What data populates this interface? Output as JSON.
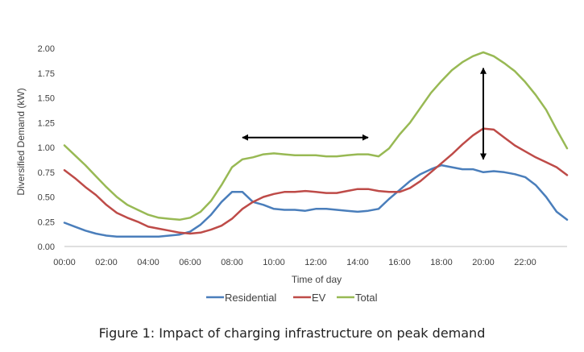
{
  "chart_data": {
    "type": "line",
    "title": "",
    "xlabel": "Time of day",
    "ylabel": "Diversified Demand (kW)",
    "ylim": [
      0,
      2.0
    ],
    "xlim": [
      "00:00",
      "24:00"
    ],
    "x_ticks": [
      "00:00",
      "02:00",
      "04:00",
      "06:00",
      "08:00",
      "10:00",
      "12:00",
      "14:00",
      "16:00",
      "18:00",
      "20:00",
      "22:00"
    ],
    "y_ticks": [
      "0.00",
      "0.25",
      "0.50",
      "0.75",
      "1.00",
      "1.25",
      "1.50",
      "1.75",
      "2.00"
    ],
    "x": [
      "00:00",
      "00:30",
      "01:00",
      "01:30",
      "02:00",
      "02:30",
      "03:00",
      "03:30",
      "04:00",
      "04:30",
      "05:00",
      "05:30",
      "06:00",
      "06:30",
      "07:00",
      "07:30",
      "08:00",
      "08:30",
      "09:00",
      "09:30",
      "10:00",
      "10:30",
      "11:00",
      "11:30",
      "12:00",
      "12:30",
      "13:00",
      "13:30",
      "14:00",
      "14:30",
      "15:00",
      "15:30",
      "16:00",
      "16:30",
      "17:00",
      "17:30",
      "18:00",
      "18:30",
      "19:00",
      "19:30",
      "20:00",
      "20:30",
      "21:00",
      "21:30",
      "22:00",
      "22:30",
      "23:00",
      "23:30",
      "24:00"
    ],
    "series": [
      {
        "name": "Residential",
        "color": "#4a7ebb",
        "values": [
          0.24,
          0.2,
          0.16,
          0.13,
          0.11,
          0.1,
          0.1,
          0.1,
          0.1,
          0.1,
          0.11,
          0.12,
          0.15,
          0.22,
          0.32,
          0.45,
          0.55,
          0.55,
          0.45,
          0.42,
          0.38,
          0.37,
          0.37,
          0.36,
          0.38,
          0.38,
          0.37,
          0.36,
          0.35,
          0.36,
          0.38,
          0.48,
          0.57,
          0.66,
          0.73,
          0.78,
          0.82,
          0.8,
          0.78,
          0.78,
          0.75,
          0.76,
          0.75,
          0.73,
          0.7,
          0.62,
          0.5,
          0.35,
          0.27
        ]
      },
      {
        "name": "EV",
        "color": "#be4b48",
        "values": [
          0.77,
          0.69,
          0.6,
          0.52,
          0.42,
          0.34,
          0.29,
          0.25,
          0.2,
          0.18,
          0.16,
          0.14,
          0.13,
          0.14,
          0.17,
          0.21,
          0.28,
          0.38,
          0.45,
          0.5,
          0.53,
          0.55,
          0.55,
          0.56,
          0.55,
          0.54,
          0.54,
          0.56,
          0.58,
          0.58,
          0.56,
          0.55,
          0.55,
          0.59,
          0.66,
          0.75,
          0.84,
          0.93,
          1.03,
          1.12,
          1.19,
          1.18,
          1.1,
          1.02,
          0.96,
          0.9,
          0.85,
          0.8,
          0.72
        ]
      },
      {
        "name": "Total",
        "color": "#98b954",
        "values": [
          1.02,
          0.92,
          0.82,
          0.71,
          0.6,
          0.5,
          0.42,
          0.37,
          0.32,
          0.29,
          0.28,
          0.27,
          0.29,
          0.35,
          0.46,
          0.62,
          0.8,
          0.88,
          0.9,
          0.93,
          0.94,
          0.93,
          0.92,
          0.92,
          0.92,
          0.91,
          0.91,
          0.92,
          0.93,
          0.93,
          0.91,
          0.99,
          1.13,
          1.25,
          1.4,
          1.55,
          1.67,
          1.78,
          1.86,
          1.92,
          1.96,
          1.92,
          1.85,
          1.77,
          1.66,
          1.53,
          1.38,
          1.18,
          0.99
        ]
      }
    ],
    "annotations": [
      {
        "type": "double-arrow",
        "orientation": "horizontal",
        "from": "08:30",
        "to": "14:30",
        "y": 1.1
      },
      {
        "type": "double-arrow",
        "orientation": "vertical",
        "x": "20:00",
        "from": 0.88,
        "to": 1.8
      }
    ],
    "legend": {
      "placement": "bottom-center",
      "entries": [
        "Residential",
        "EV",
        "Total"
      ]
    },
    "grid": false
  },
  "caption": "Figure 1: Impact of charging infrastructure on peak demand"
}
